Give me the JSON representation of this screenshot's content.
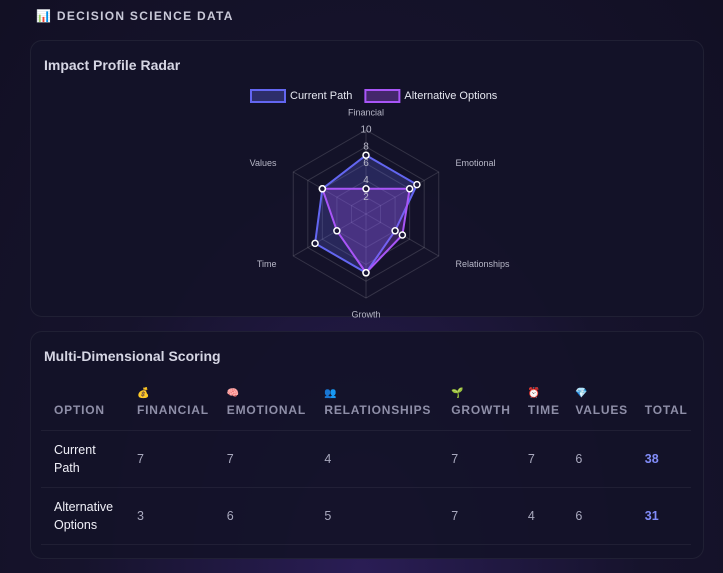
{
  "header": {
    "icon": "📊",
    "title": "DECISION SCIENCE DATA"
  },
  "chart_data": {
    "type": "radar",
    "title": "Impact Profile Radar",
    "categories": [
      "Financial",
      "Emotional",
      "Relationships",
      "Growth",
      "Time",
      "Values"
    ],
    "series": [
      {
        "name": "Current Path",
        "color": "#6366f1",
        "values": [
          7,
          7,
          4,
          7,
          7,
          6
        ]
      },
      {
        "name": "Alternative Options",
        "color": "#a855f7",
        "values": [
          3,
          6,
          5,
          7,
          4,
          6
        ]
      }
    ],
    "rlim": [
      0,
      10
    ],
    "rticks": [
      2,
      4,
      6,
      8,
      10
    ],
    "grid": true
  },
  "table": {
    "title": "Multi-Dimensional Scoring",
    "columns": [
      {
        "label": "OPTION"
      },
      {
        "icon": "💰",
        "label": "FINANCIAL"
      },
      {
        "icon": "🧠",
        "label": "EMOTIONAL"
      },
      {
        "icon": "👥",
        "label": "RELATIONSHIPS"
      },
      {
        "icon": "🌱",
        "label": "GROWTH"
      },
      {
        "icon": "⏰",
        "label": "TIME"
      },
      {
        "icon": "💎",
        "label": "VALUES"
      },
      {
        "label": "TOTAL"
      }
    ],
    "rows": [
      [
        "Current Path",
        7,
        7,
        4,
        7,
        7,
        6,
        38
      ],
      [
        "Alternative Options",
        3,
        6,
        5,
        7,
        4,
        6,
        31
      ]
    ]
  }
}
